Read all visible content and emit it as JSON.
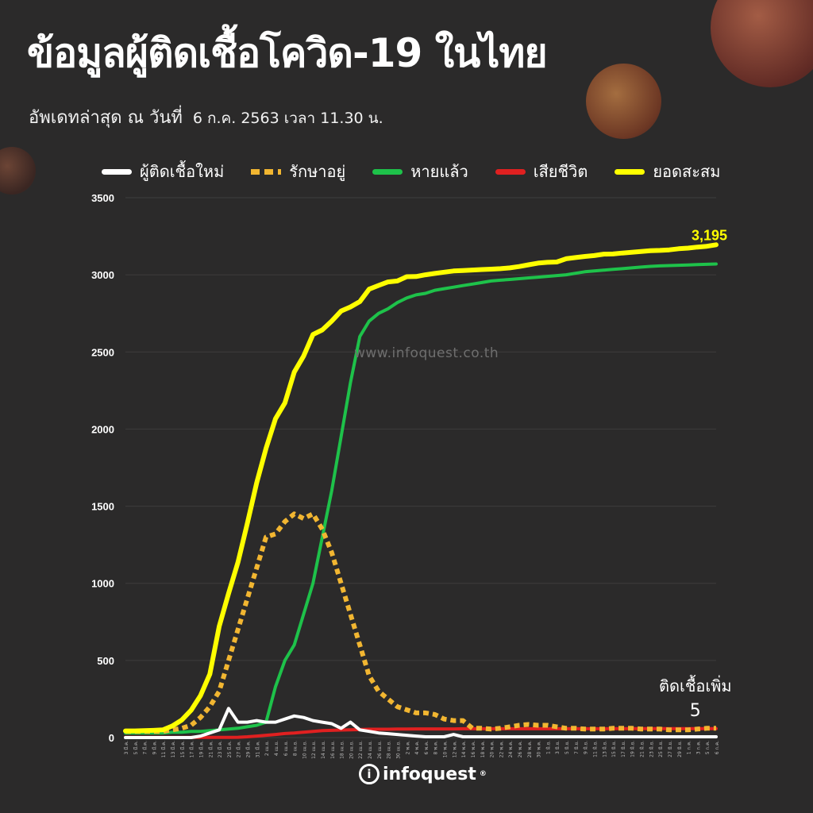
{
  "header": {
    "title": "ข้อมูลผู้ติดเชื้อโควิด-19 ในไทย",
    "subtitle_label": "อัพเดทล่าสุด ณ วันที่",
    "subtitle_value": "6 ก.ค. 2563 เวลา 11.30 น."
  },
  "watermark": "www.infoquest.co.th",
  "annotation": {
    "label": "ติดเชื้อเพิ่ม",
    "value": "5"
  },
  "logo": {
    "text": "infoquest",
    "mark": "®"
  },
  "colors": {
    "background": "#2b2a2a",
    "new": "#ffffff",
    "active": "#f2b631",
    "recovered": "#1ec24a",
    "deaths": "#e02020",
    "cumulative": "#ffff00"
  },
  "chart_data": {
    "type": "line",
    "ylim": [
      0,
      3500
    ],
    "yticks": [
      0,
      500,
      1000,
      1500,
      2000,
      2500,
      3000,
      3500
    ],
    "x_tick_labels": [
      "3 มี.ค.",
      "5 มี.ค.",
      "7 มี.ค.",
      "9 มี.ค.",
      "11 มี.ค.",
      "13 มี.ค.",
      "15 มี.ค.",
      "17 มี.ค.",
      "19 มี.ค.",
      "21 มี.ค.",
      "23 มี.ค.",
      "25 มี.ค.",
      "27 มี.ค.",
      "29 มี.ค.",
      "31 มี.ค.",
      "2 เม.ย.",
      "4 เม.ย.",
      "6 เม.ย.",
      "8 เม.ย.",
      "10 เม.ย.",
      "12 เม.ย.",
      "14 เม.ย.",
      "16 เม.ย.",
      "18 เม.ย.",
      "20 เม.ย.",
      "22 เม.ย.",
      "24 เม.ย.",
      "26 เม.ย.",
      "28 เม.ย.",
      "30 เม.ย.",
      "2 พ.ค.",
      "4 พ.ค.",
      "6 พ.ค.",
      "8 พ.ค.",
      "10 พ.ค.",
      "12 พ.ค.",
      "14 พ.ค.",
      "16 พ.ค.",
      "18 พ.ค.",
      "20 พ.ค.",
      "22 พ.ค.",
      "24 พ.ค.",
      "26 พ.ค.",
      "28 พ.ค.",
      "30 พ.ค.",
      "1 มิ.ย.",
      "3 มิ.ย.",
      "5 มิ.ย.",
      "7 มิ.ย.",
      "9 มิ.ย.",
      "11 มิ.ย.",
      "13 มิ.ย.",
      "15 มิ.ย.",
      "17 มิ.ย.",
      "19 มิ.ย.",
      "21 มิ.ย.",
      "23 มิ.ย.",
      "25 มิ.ย.",
      "27 มิ.ย.",
      "29 มิ.ย.",
      "1 ก.ค.",
      "3 ก.ค.",
      "5 ก.ค.",
      "6 ก.ค."
    ],
    "series": [
      {
        "name": "ผู้ติดเชื้อใหม่",
        "key": "new",
        "values": [
          0,
          0,
          0,
          0,
          0,
          0,
          0,
          0,
          10,
          30,
          50,
          189,
          100,
          100,
          110,
          100,
          100,
          120,
          140,
          130,
          110,
          100,
          90,
          60,
          100,
          50,
          40,
          30,
          25,
          20,
          15,
          10,
          5,
          5,
          5,
          20,
          5,
          5,
          5,
          5,
          5,
          5,
          5,
          5,
          5,
          5,
          5,
          5,
          5,
          5,
          5,
          5,
          5,
          5,
          5,
          5,
          5,
          5,
          5,
          5,
          5,
          5,
          5,
          5
        ]
      },
      {
        "name": "รักษาอยู่",
        "key": "active",
        "values": [
          40,
          40,
          40,
          40,
          40,
          50,
          60,
          80,
          130,
          200,
          300,
          500,
          700,
          900,
          1100,
          1300,
          1320,
          1400,
          1450,
          1420,
          1450,
          1350,
          1200,
          1000,
          800,
          600,
          400,
          300,
          250,
          200,
          180,
          160,
          160,
          150,
          120,
          110,
          110,
          60,
          60,
          55,
          60,
          70,
          80,
          85,
          80,
          80,
          70,
          60,
          60,
          55,
          55,
          55,
          60,
          60,
          60,
          55,
          55,
          55,
          50,
          50,
          50,
          55,
          60,
          60
        ]
      },
      {
        "name": "หายแล้ว",
        "key": "recovered",
        "values": [
          30,
          30,
          30,
          30,
          30,
          35,
          35,
          40,
          40,
          45,
          50,
          55,
          60,
          70,
          80,
          100,
          330,
          500,
          600,
          800,
          1000,
          1300,
          1600,
          1950,
          2300,
          2600,
          2700,
          2750,
          2780,
          2820,
          2850,
          2870,
          2880,
          2900,
          2910,
          2920,
          2930,
          2940,
          2950,
          2960,
          2965,
          2970,
          2975,
          2980,
          2985,
          2990,
          2995,
          3000,
          3010,
          3020,
          3025,
          3030,
          3035,
          3040,
          3045,
          3050,
          3055,
          3058,
          3060,
          3062,
          3064,
          3066,
          3068,
          3070
        ]
      },
      {
        "name": "เสียชีวิต",
        "key": "deaths",
        "values": [
          1,
          1,
          1,
          1,
          1,
          1,
          1,
          1,
          1,
          1,
          1,
          1,
          2,
          5,
          10,
          15,
          20,
          26,
          30,
          35,
          40,
          45,
          47,
          49,
          50,
          52,
          54,
          54,
          54,
          55,
          55,
          56,
          56,
          56,
          56,
          56,
          57,
          57,
          57,
          57,
          57,
          57,
          57,
          57,
          57,
          57,
          57,
          57,
          57,
          57,
          57,
          57,
          58,
          58,
          58,
          58,
          58,
          58,
          58,
          58,
          58,
          58,
          58,
          58
        ]
      },
      {
        "name": "ยอดสะสม",
        "key": "cumulative",
        "values": [
          43,
          43,
          45,
          47,
          50,
          75,
          114,
          177,
          272,
          411,
          721,
          934,
          1136,
          1388,
          1651,
          1875,
          2067,
          2169,
          2369,
          2473,
          2613,
          2643,
          2700,
          2765,
          2792,
          2826,
          2907,
          2931,
          2954,
          2960,
          2988,
          2989,
          3000,
          3009,
          3017,
          3025,
          3028,
          3031,
          3034,
          3037,
          3040,
          3045,
          3054,
          3065,
          3076,
          3081,
          3083,
          3104,
          3112,
          3119,
          3125,
          3134,
          3135,
          3141,
          3146,
          3151,
          3156,
          3158,
          3162,
          3169,
          3173,
          3180,
          3185,
          3195
        ]
      }
    ],
    "end_label": "3,195"
  }
}
